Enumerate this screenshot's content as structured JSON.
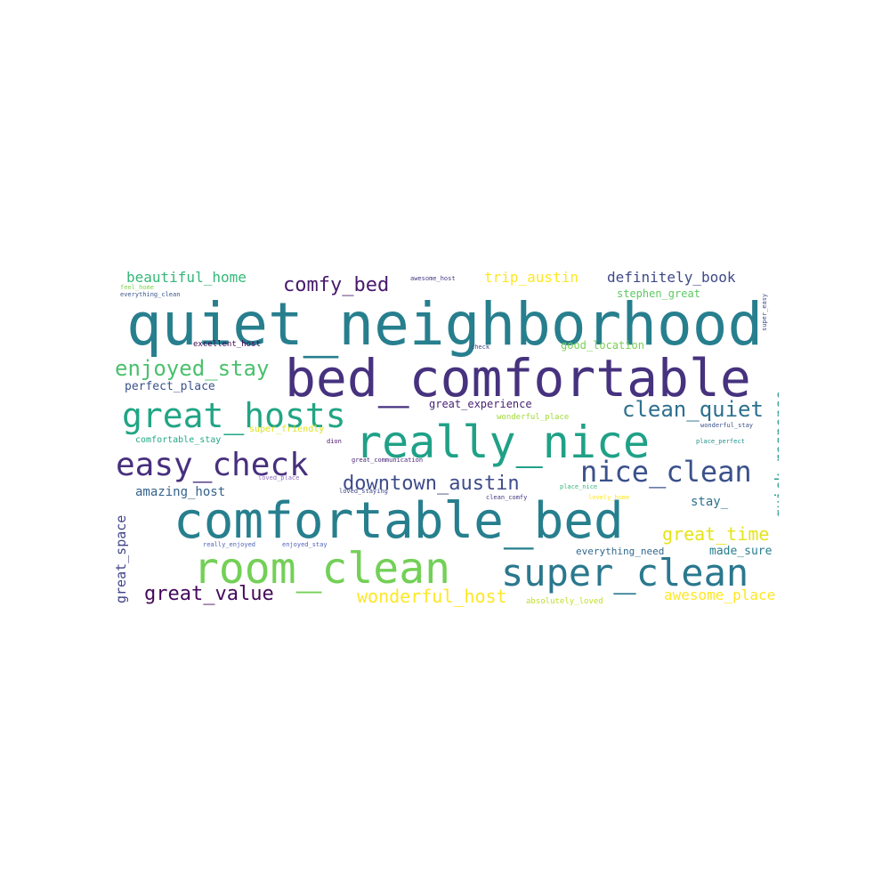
{
  "palette": {
    "dark_purple": "#440154",
    "indigo": "#46327e",
    "blue": "#365c8d",
    "teal_blue": "#277f8e",
    "teal": "#1fa187",
    "green": "#4ac16d",
    "light_green": "#a0da39",
    "yellow": "#fde725"
  },
  "words": [
    {
      "text": "quiet_neighborhood",
      "color": "#277f8e"
    },
    {
      "text": "bed_comfortable",
      "color": "#46327e"
    },
    {
      "text": "comfortable_bed",
      "color": "#277f8e"
    },
    {
      "text": "really_nice",
      "color": "#1fa187"
    },
    {
      "text": "room_clean",
      "color": "#73d056"
    },
    {
      "text": "super_clean",
      "color": "#2a788e"
    },
    {
      "text": "great_hosts",
      "color": "#21a585"
    },
    {
      "text": "easy_check",
      "color": "#472f7d"
    },
    {
      "text": "nice_clean",
      "color": "#3b518b"
    },
    {
      "text": "downtown_austin",
      "color": "#3e4c8a"
    },
    {
      "text": "enjoyed_stay",
      "color": "#4ac16d"
    },
    {
      "text": "clean_quiet",
      "color": "#2d708e"
    },
    {
      "text": "comfy_bed",
      "color": "#481a6c"
    },
    {
      "text": "great_time",
      "color": "#e5e419"
    },
    {
      "text": "great_value",
      "color": "#46085c"
    },
    {
      "text": "wonderful_host",
      "color": "#fde725"
    },
    {
      "text": "beautiful_home",
      "color": "#35b779"
    },
    {
      "text": "definitely_book",
      "color": "#3e4989"
    },
    {
      "text": "trip_austin",
      "color": "#fde725"
    },
    {
      "text": "quick_response",
      "color": "#2a9d8f"
    },
    {
      "text": "awesome_place",
      "color": "#fde725"
    },
    {
      "text": "great_space",
      "color": "#414487"
    },
    {
      "text": "amazing_host",
      "color": "#33638d"
    },
    {
      "text": "stay_",
      "color": "#2c728e"
    },
    {
      "text": "perfect_place",
      "color": "#3b528b"
    },
    {
      "text": "made_sure",
      "color": "#287d8e"
    },
    {
      "text": "stephen_great",
      "color": "#5ec962"
    },
    {
      "text": "good_location",
      "color": "#7ad151"
    },
    {
      "text": "great_experience",
      "color": "#482475"
    },
    {
      "text": "everything_need",
      "color": "#31688e"
    },
    {
      "text": "excellent_host",
      "color": "#440154"
    },
    {
      "text": "wonderful_place",
      "color": "#a0da39"
    },
    {
      "text": "comfortable_stay",
      "color": "#22a884"
    },
    {
      "text": "super_friendly",
      "color": "#dde318"
    },
    {
      "text": "absolutely_loved",
      "color": "#bddf26"
    },
    {
      "text": "awesome_host",
      "color": "#443a83"
    },
    {
      "text": "feel_home",
      "color": "#7fd34e"
    },
    {
      "text": "everything_clean",
      "color": "#3a548c"
    },
    {
      "text": "check",
      "color": "#3e4a89"
    },
    {
      "text": "wonderful_stay",
      "color": "#3b528b"
    },
    {
      "text": "place_perfect",
      "color": "#20928c"
    },
    {
      "text": "great_communication",
      "color": "#482677"
    },
    {
      "text": "dion",
      "color": "#481467"
    },
    {
      "text": "loved_place",
      "color": "#8f6fbf"
    },
    {
      "text": "loved_staying",
      "color": "#3f4788"
    },
    {
      "text": "clean_comfy",
      "color": "#443983"
    },
    {
      "text": "place_nice",
      "color": "#35b779"
    },
    {
      "text": "lovely_home",
      "color": "#fde725"
    },
    {
      "text": "really_enjoyed",
      "color": "#4e61b8"
    },
    {
      "text": "enjoyed_stay",
      "color": "#4e61b8"
    },
    {
      "text": "super_easy",
      "color": "#3e4c8a"
    }
  ]
}
